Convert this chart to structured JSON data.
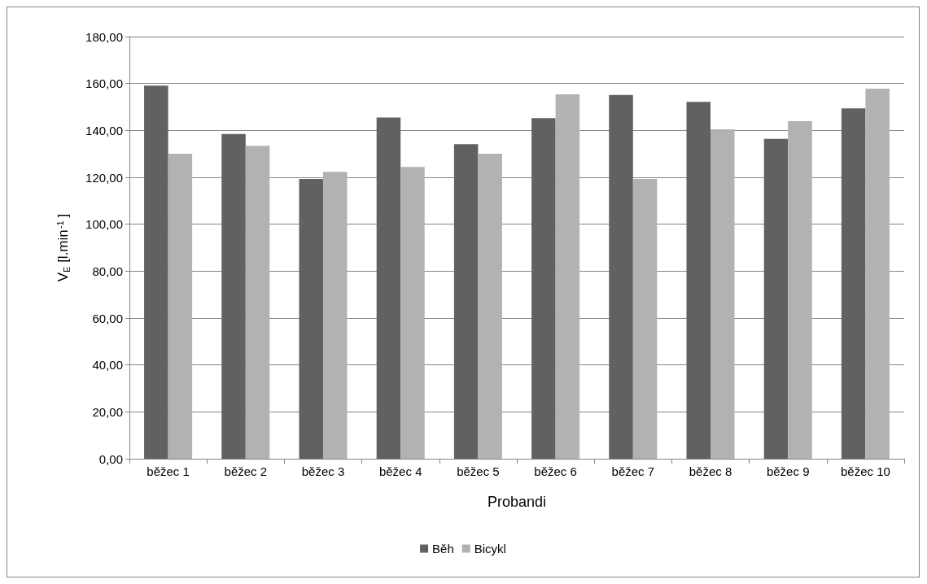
{
  "chart_data": {
    "type": "bar",
    "xlabel": "Probandi",
    "ylabel": "V$_{E}$ [l.min$^{-1}$]",
    "categories": [
      "běžec 1",
      "běžec 2",
      "běžec 3",
      "běžec 4",
      "běžec 5",
      "běžec 6",
      "běžec 7",
      "běžec 8",
      "běžec 9",
      "běžec 10"
    ],
    "series": [
      {
        "name": "Běh",
        "color": "#616161",
        "values": [
          159.1,
          138.5,
          119.3,
          145.5,
          134.1,
          145.2,
          155.1,
          152.2,
          136.4,
          149.4
        ]
      },
      {
        "name": "Bicykl",
        "color": "#b2b2b2",
        "values": [
          130.1,
          133.4,
          122.3,
          124.4,
          130.1,
          155.4,
          119.3,
          140.5,
          143.9,
          157.8
        ]
      }
    ],
    "ylim": [
      0,
      180
    ],
    "yticks": [
      {
        "value": 0,
        "label": "0,00"
      },
      {
        "value": 20,
        "label": "20,00"
      },
      {
        "value": 40,
        "label": "40,00"
      },
      {
        "value": 60,
        "label": "60,00"
      },
      {
        "value": 80,
        "label": "80,00"
      },
      {
        "value": 100,
        "label": "100,00"
      },
      {
        "value": 120,
        "label": "120,00"
      },
      {
        "value": 140,
        "label": "140,00"
      },
      {
        "value": 160,
        "label": "160,00"
      },
      {
        "value": 180,
        "label": "180,00"
      }
    ],
    "grid": "y",
    "legend": "bottom"
  }
}
